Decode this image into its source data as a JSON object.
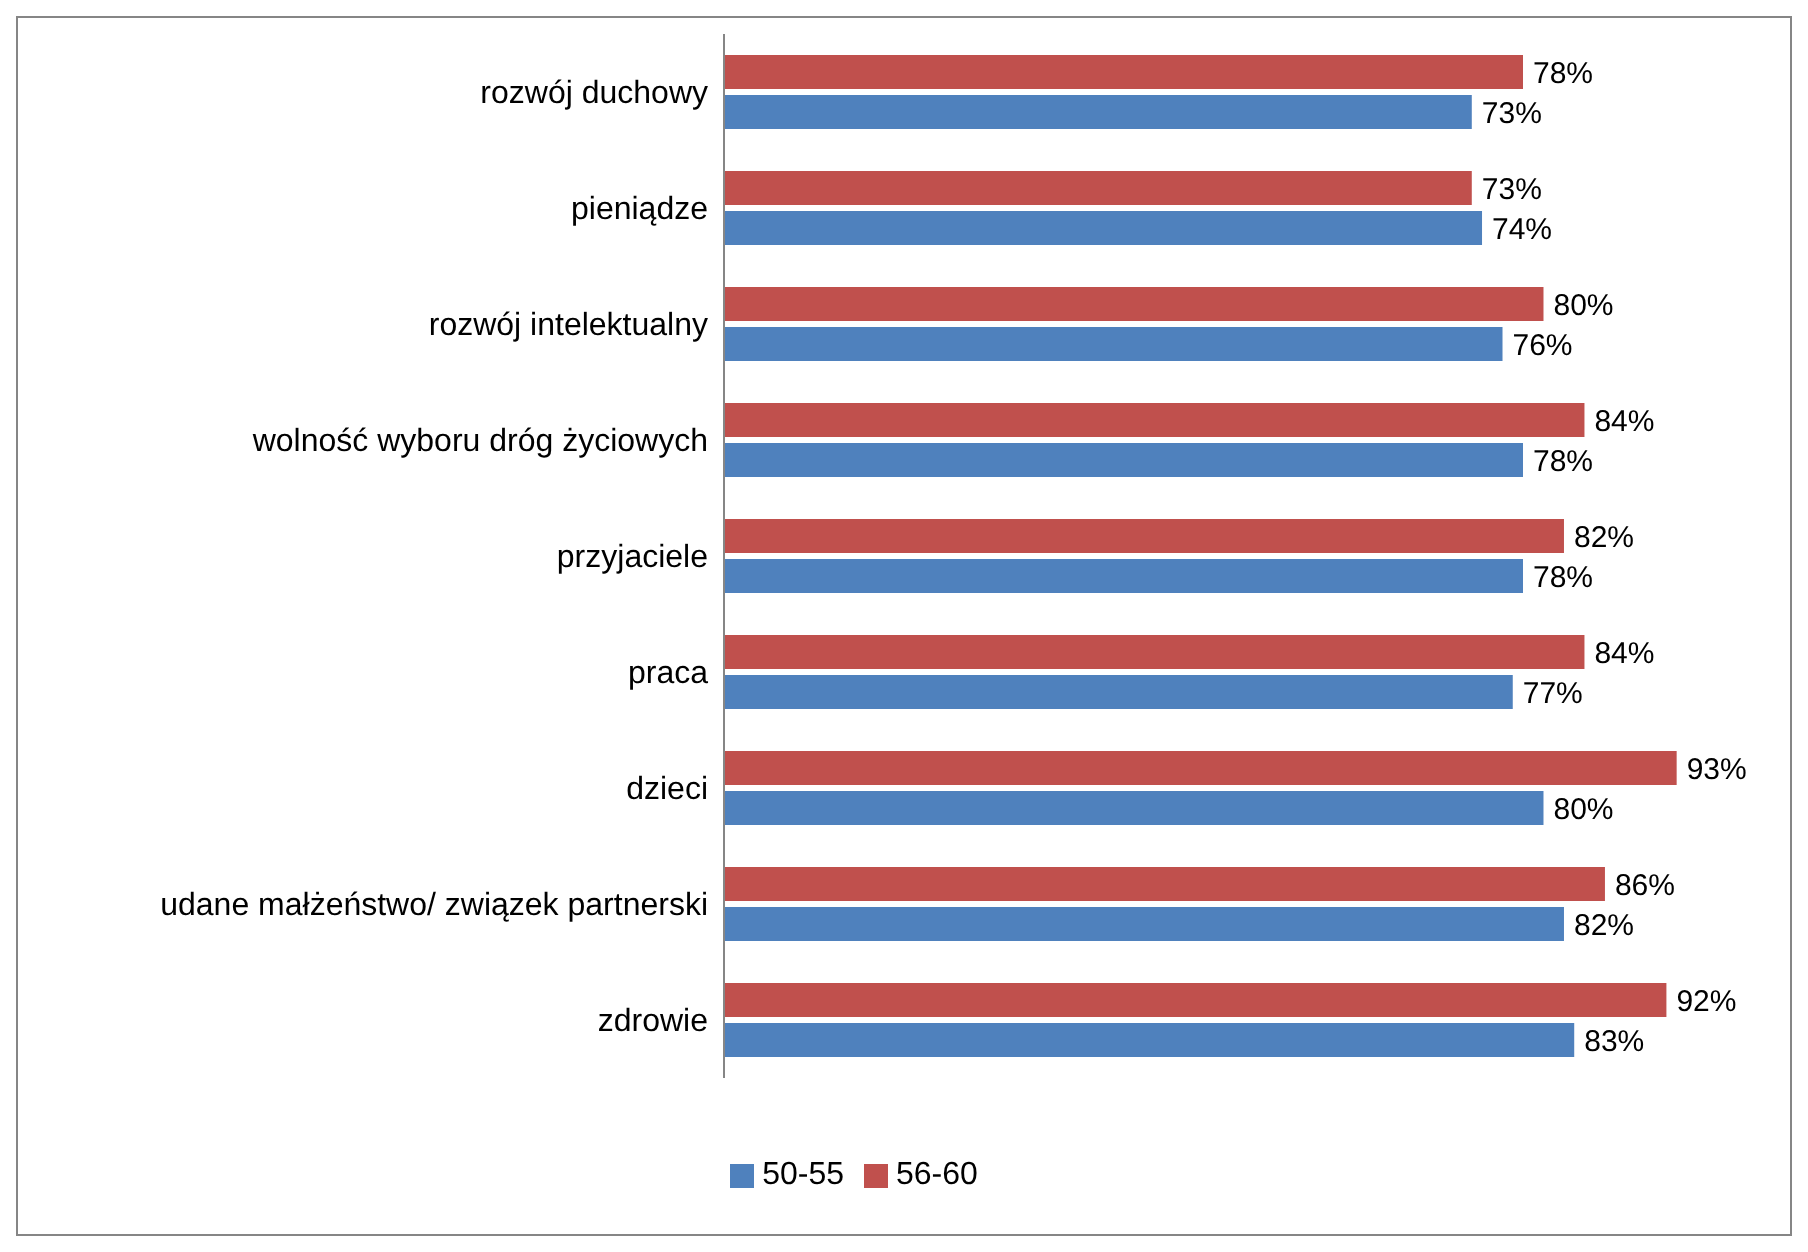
{
  "chart_data": {
    "type": "bar",
    "orientation": "horizontal",
    "categories": [
      "rozwój duchowy",
      "pieniądze",
      "rozwój intelektualny",
      "wolność wyboru dróg życiowych",
      "przyjaciele",
      "praca",
      "dzieci",
      "udane małżeństwo/ związek partnerski",
      "zdrowie"
    ],
    "series": [
      {
        "name": "56-60",
        "color": "#c0504d",
        "values": [
          78,
          73,
          80,
          84,
          82,
          84,
          93,
          86,
          92
        ],
        "value_labels": [
          "78%",
          "73%",
          "80%",
          "84%",
          "82%",
          "84%",
          "93%",
          "86%",
          "92%"
        ]
      },
      {
        "name": "50-55",
        "color": "#4f81bd",
        "values": [
          73,
          74,
          76,
          78,
          78,
          77,
          80,
          82,
          83
        ],
        "value_labels": [
          "73%",
          "74%",
          "76%",
          "78%",
          "78%",
          "77%",
          "80%",
          "82%",
          "83%"
        ]
      }
    ],
    "tick_labels": "y",
    "grid": false,
    "legend": "bottom"
  }
}
